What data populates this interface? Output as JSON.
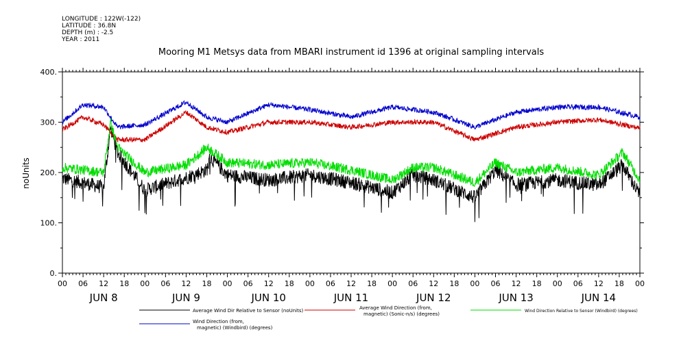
{
  "header": {
    "longitude": "LONGITUDE : 122W(-122)",
    "latitude": "LATITUDE : 36.8N",
    "depth": "DEPTH (m) : -2.5",
    "year": "YEAR : 2011"
  },
  "chart_data": {
    "type": "line",
    "title": "Mooring M1 Metsys data from MBARI instrument id 1396 at original sampling intervals",
    "ylabel": "noUnits",
    "xlabel": "",
    "ylim": [
      0,
      400
    ],
    "yticks": [
      "0.",
      "100.",
      "200.",
      "300.",
      "400."
    ],
    "xlim_hours": [
      0,
      168
    ],
    "xtick_hour_labels": [
      "00",
      "06",
      "12",
      "18",
      "00",
      "06",
      "12",
      "18",
      "00",
      "06",
      "12",
      "18",
      "00",
      "06",
      "12",
      "18",
      "00",
      "06",
      "12",
      "18",
      "00",
      "06",
      "12",
      "18",
      "00",
      "06",
      "12",
      "18",
      "00"
    ],
    "day_labels": [
      "JUN  8",
      "JUN  9",
      "JUN 10",
      "JUN 11",
      "JUN 12",
      "JUN 13",
      "JUN 14"
    ],
    "grid": false,
    "legend_position": "bottom",
    "series": [
      {
        "name": "Average Wind Dir Relative to Sensor (noUnits)",
        "color": "#000000",
        "x": [
          0,
          6,
          12,
          14,
          16,
          24,
          36,
          42,
          43,
          48,
          60,
          72,
          84,
          96,
          102,
          108,
          120,
          126,
          132,
          144,
          156,
          163,
          168
        ],
        "y": [
          188,
          180,
          170,
          290,
          240,
          165,
          190,
          205,
          230,
          195,
          185,
          195,
          180,
          160,
          195,
          185,
          150,
          205,
          175,
          185,
          175,
          215,
          155
        ]
      },
      {
        "name": "Average Wind Direction (from, magnetic) (Sonic-n/s) (degrees)",
        "color": "#cc0000",
        "x": [
          0,
          6,
          12,
          16,
          24,
          36,
          42,
          48,
          60,
          72,
          84,
          96,
          108,
          120,
          132,
          144,
          156,
          168
        ],
        "y": [
          285,
          310,
          295,
          265,
          265,
          320,
          290,
          280,
          300,
          300,
          290,
          300,
          300,
          265,
          290,
          300,
          305,
          288
        ]
      },
      {
        "name": "Wind Direction Relative to Sensor (Windbird) (degrees)",
        "color": "#00dd00",
        "x": [
          0,
          6,
          12,
          14,
          16,
          24,
          36,
          42,
          48,
          60,
          72,
          84,
          96,
          102,
          108,
          120,
          126,
          132,
          144,
          156,
          163,
          168
        ],
        "y": [
          210,
          205,
          200,
          300,
          250,
          200,
          215,
          250,
          220,
          215,
          220,
          205,
          185,
          210,
          210,
          180,
          220,
          200,
          210,
          195,
          240,
          185
        ]
      },
      {
        "name": "Wind Direction (from, magnetic) (Windbird) (degrees)",
        "color": "#0000cc",
        "x": [
          0,
          6,
          12,
          16,
          24,
          36,
          42,
          48,
          60,
          72,
          84,
          96,
          108,
          120,
          132,
          144,
          156,
          168
        ],
        "y": [
          300,
          335,
          330,
          290,
          295,
          340,
          310,
          300,
          335,
          325,
          310,
          330,
          320,
          290,
          320,
          330,
          330,
          310
        ]
      }
    ]
  },
  "legend": {
    "black": "Average Wind Dir Relative to Sensor (noUnits)",
    "red_line1": "Average Wind Direction (from,",
    "red_line2": "magnetic) (Sonic-n/s) (degrees)",
    "green": "Wind Direction Relative to Sensor (Windbird) (degrees)",
    "blue_line1": "Wind Direction (from,",
    "blue_line2": "magnetic) (Windbird) (degrees)"
  }
}
